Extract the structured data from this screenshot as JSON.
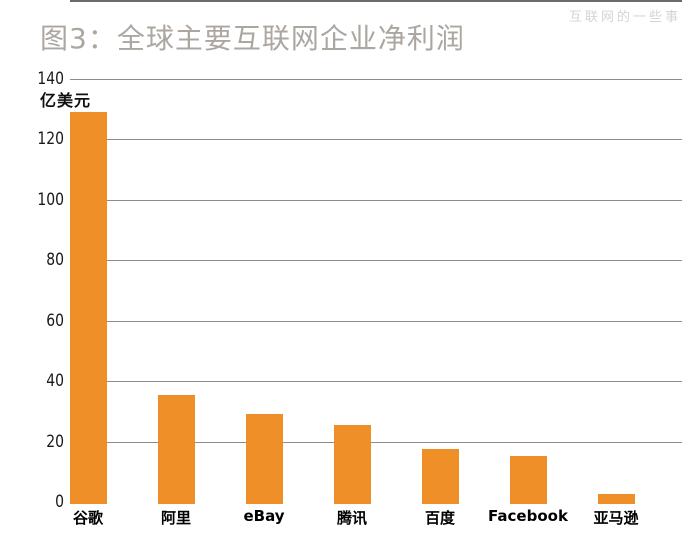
{
  "watermark": "互联网的一些事",
  "chart_data": {
    "type": "bar",
    "title": "图3：全球主要互联网企业净利润",
    "unit_label": "亿美元",
    "categories": [
      "谷歌",
      "阿里",
      "eBay",
      "腾讯",
      "百度",
      "Facebook",
      "亚马逊"
    ],
    "values": [
      129,
      35.5,
      29,
      25.5,
      17.5,
      15.3,
      2.7
    ],
    "xlabel": "",
    "ylabel": "亿美元",
    "ylim": [
      0,
      140
    ],
    "yticks": [
      0,
      20,
      40,
      60,
      80,
      100,
      120,
      140
    ],
    "grid": true,
    "legend": "none",
    "bar_color": "#EF8F28"
  },
  "colors": {
    "bar": "#EF8F28",
    "gridline": "#8C8C8C",
    "axis_line": "#6B6B6B",
    "title": "#ACA6A0",
    "watermark": "#D7D4D1",
    "tick_text": "#1a1a1a"
  }
}
